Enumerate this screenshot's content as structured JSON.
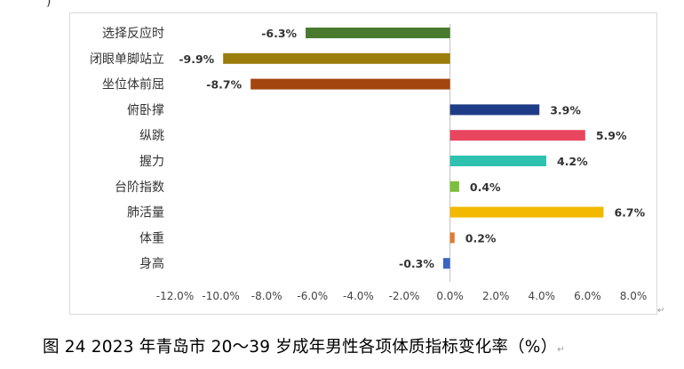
{
  "chart_data": {
    "type": "bar",
    "orientation": "horizontal",
    "title": "",
    "xlabel": "",
    "ylabel": "",
    "categories": [
      "选择反应时",
      "闭眼单脚站立",
      "坐位体前屈",
      "俯卧撑",
      "纵跳",
      "握力",
      "台阶指数",
      "肺活量",
      "体重",
      "身高"
    ],
    "values": [
      -6.3,
      -9.9,
      -8.7,
      3.9,
      5.9,
      4.2,
      0.4,
      6.7,
      0.2,
      -0.3
    ],
    "value_labels": [
      "-6.3%",
      "-9.9%",
      "-8.7%",
      "3.9%",
      "5.9%",
      "4.2%",
      "0.4%",
      "6.7%",
      "0.2%",
      "-0.3%"
    ],
    "colors": [
      "#4a7a2e",
      "#9a7d0a",
      "#a3460f",
      "#1f3c88",
      "#e8465f",
      "#2fc1b0",
      "#7cbf3c",
      "#f2b900",
      "#e07b30",
      "#3b63c4"
    ],
    "xlim": [
      -12,
      8
    ],
    "xticks": [
      -12,
      -10,
      -8,
      -6,
      -4,
      -2,
      0,
      2,
      4,
      6,
      8
    ],
    "xtick_labels": [
      "-12.0%",
      "-10.0%",
      "-8.0%",
      "-6.0%",
      "-4.0%",
      "-2.0%",
      "0.0%",
      "2.0%",
      "4.0%",
      "6.0%",
      "8.0%"
    ],
    "grid": false,
    "legend": "none"
  },
  "caption": "图 24 2023 年青岛市 20～39 岁成年男性各项体质指标变化率（%）",
  "caption_mark": "↵",
  "frame_mark": "↵",
  "top_mark": ")"
}
